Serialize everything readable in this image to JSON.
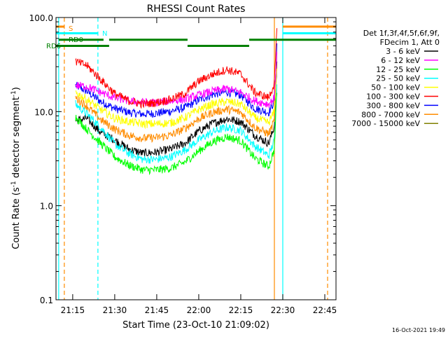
{
  "chart_data": {
    "type": "line",
    "title": "RHESSI Count Rates",
    "xlabel": "Start Time (23-Oct-10 21:09:02)",
    "ylabel": "Count Rate (s",
    "ylabel_sup": "-1",
    "ylabel_tail": " detector segment",
    "ylabel_sup2": "-1",
    "ylabel_end": ")",
    "y_scale": "log",
    "ylim": [
      0.1,
      100
    ],
    "xlim": [
      "21:09:02",
      "22:49:00"
    ],
    "x_ticks": [
      "21:15",
      "21:30",
      "21:45",
      "22:00",
      "22:15",
      "22:30",
      "22:45"
    ],
    "y_ticks": [
      "0.1",
      "1.0",
      "10.0",
      "100.0"
    ],
    "grid": false,
    "legend_position": "right",
    "legend_header": [
      "Det 1f,3f,4f,5f,6f,9f,",
      "FDecim 1, Att 0"
    ],
    "timestamp": "16-Oct-2021 19:49",
    "series": [
      {
        "name": "3 - 6 keV",
        "color": "#000000",
        "values": [
          [
            "21:16:00",
            8.0
          ],
          [
            "21:20:00",
            8.5
          ],
          [
            "21:25:00",
            6.0
          ],
          [
            "21:30:00",
            5.0
          ],
          [
            "21:35:00",
            4.0
          ],
          [
            "21:40:00",
            3.6
          ],
          [
            "21:45:00",
            3.7
          ],
          [
            "21:50:00",
            4.0
          ],
          [
            "21:55:00",
            4.6
          ],
          [
            "22:00:00",
            6.2
          ],
          [
            "22:05:00",
            7.5
          ],
          [
            "22:10:00",
            8.4
          ],
          [
            "22:15:00",
            7.8
          ],
          [
            "22:20:00",
            5.6
          ],
          [
            "22:25:00",
            4.6
          ],
          [
            "22:27:00",
            7.0
          ],
          [
            "22:28:00",
            40.0
          ]
        ]
      },
      {
        "name": "6 - 12 keV",
        "color": "#ff00ff",
        "values": [
          [
            "21:16:00",
            19.0
          ],
          [
            "21:20:00",
            18.5
          ],
          [
            "21:25:00",
            16.0
          ],
          [
            "21:30:00",
            14.0
          ],
          [
            "21:35:00",
            13.0
          ],
          [
            "21:40:00",
            12.5
          ],
          [
            "21:45:00",
            12.5
          ],
          [
            "21:50:00",
            13.0
          ],
          [
            "21:55:00",
            13.5
          ],
          [
            "22:00:00",
            15.0
          ],
          [
            "22:05:00",
            16.5
          ],
          [
            "22:10:00",
            17.5
          ],
          [
            "22:15:00",
            16.0
          ],
          [
            "22:20:00",
            13.0
          ],
          [
            "22:25:00",
            12.0
          ],
          [
            "22:27:00",
            14.0
          ],
          [
            "22:28:00",
            50.0
          ]
        ]
      },
      {
        "name": "12 - 25 keV",
        "color": "#00ff00",
        "values": [
          [
            "21:16:00",
            8.8
          ],
          [
            "21:20:00",
            6.5
          ],
          [
            "21:25:00",
            4.6
          ],
          [
            "21:30:00",
            3.3
          ],
          [
            "21:35:00",
            2.7
          ],
          [
            "21:40:00",
            2.4
          ],
          [
            "21:45:00",
            2.4
          ],
          [
            "21:50:00",
            2.5
          ],
          [
            "21:55:00",
            2.9
          ],
          [
            "22:00:00",
            3.8
          ],
          [
            "22:05:00",
            4.8
          ],
          [
            "22:10:00",
            5.4
          ],
          [
            "22:15:00",
            4.9
          ],
          [
            "22:20:00",
            3.2
          ],
          [
            "22:25:00",
            2.6
          ],
          [
            "22:27:00",
            4.0
          ],
          [
            "22:28:00",
            20.0
          ]
        ]
      },
      {
        "name": "25 - 50 keV",
        "color": "#00ffff",
        "values": [
          [
            "21:16:00",
            12.0
          ],
          [
            "21:20:00",
            9.5
          ],
          [
            "21:25:00",
            6.8
          ],
          [
            "21:30:00",
            4.5
          ],
          [
            "21:35:00",
            3.6
          ],
          [
            "21:40:00",
            3.1
          ],
          [
            "21:45:00",
            3.1
          ],
          [
            "21:50:00",
            3.3
          ],
          [
            "21:55:00",
            3.9
          ],
          [
            "22:00:00",
            5.0
          ],
          [
            "22:05:00",
            6.1
          ],
          [
            "22:10:00",
            6.8
          ],
          [
            "22:15:00",
            6.3
          ],
          [
            "22:20:00",
            4.3
          ],
          [
            "22:25:00",
            3.4
          ],
          [
            "22:27:00",
            5.0
          ],
          [
            "22:28:00",
            25.0
          ]
        ]
      },
      {
        "name": "50 - 100 keV",
        "color": "#ffff00",
        "values": [
          [
            "21:16:00",
            16.0
          ],
          [
            "21:20:00",
            13.5
          ],
          [
            "21:25:00",
            10.5
          ],
          [
            "21:30:00",
            8.5
          ],
          [
            "21:35:00",
            7.8
          ],
          [
            "21:40:00",
            7.4
          ],
          [
            "21:45:00",
            7.4
          ],
          [
            "21:50:00",
            7.6
          ],
          [
            "21:55:00",
            8.6
          ],
          [
            "22:00:00",
            10.5
          ],
          [
            "22:05:00",
            12.0
          ],
          [
            "22:10:00",
            12.8
          ],
          [
            "22:15:00",
            12.0
          ],
          [
            "22:20:00",
            8.6
          ],
          [
            "22:25:00",
            7.6
          ],
          [
            "22:27:00",
            10.0
          ],
          [
            "22:28:00",
            35.0
          ]
        ]
      },
      {
        "name": "100 - 300 keV",
        "color": "#ff0000",
        "values": [
          [
            "21:16:00",
            34.0
          ],
          [
            "21:20:00",
            31.0
          ],
          [
            "21:25:00",
            22.0
          ],
          [
            "21:30:00",
            15.5
          ],
          [
            "21:35:00",
            13.0
          ],
          [
            "21:40:00",
            12.0
          ],
          [
            "21:45:00",
            12.5
          ],
          [
            "21:50:00",
            13.5
          ],
          [
            "21:55:00",
            15.5
          ],
          [
            "22:00:00",
            21.0
          ],
          [
            "22:05:00",
            25.0
          ],
          [
            "22:10:00",
            28.0
          ],
          [
            "22:15:00",
            25.0
          ],
          [
            "22:20:00",
            16.0
          ],
          [
            "22:25:00",
            14.0
          ],
          [
            "22:27:00",
            20.0
          ],
          [
            "22:28:00",
            90.0
          ]
        ]
      },
      {
        "name": "300 - 800 keV",
        "color": "#0000ff",
        "values": [
          [
            "21:16:00",
            19.0
          ],
          [
            "21:20:00",
            16.5
          ],
          [
            "21:25:00",
            12.8
          ],
          [
            "21:30:00",
            10.8
          ],
          [
            "21:35:00",
            9.8
          ],
          [
            "21:40:00",
            9.4
          ],
          [
            "21:45:00",
            9.6
          ],
          [
            "21:50:00",
            10.1
          ],
          [
            "21:55:00",
            11.0
          ],
          [
            "22:00:00",
            13.3
          ],
          [
            "22:05:00",
            15.2
          ],
          [
            "22:10:00",
            16.2
          ],
          [
            "22:15:00",
            15.0
          ],
          [
            "22:20:00",
            10.8
          ],
          [
            "22:25:00",
            9.8
          ],
          [
            "22:27:00",
            13.0
          ],
          [
            "22:28:00",
            60.0
          ]
        ]
      },
      {
        "name": "800 - 7000 keV",
        "color": "#ff8c00",
        "values": [
          [
            "21:16:00",
            14.0
          ],
          [
            "21:20:00",
            11.5
          ],
          [
            "21:25:00",
            8.2
          ],
          [
            "21:30:00",
            6.5
          ],
          [
            "21:35:00",
            5.6
          ],
          [
            "21:40:00",
            5.2
          ],
          [
            "21:45:00",
            5.3
          ],
          [
            "21:50:00",
            5.6
          ],
          [
            "21:55:00",
            6.6
          ],
          [
            "22:00:00",
            8.4
          ],
          [
            "22:05:00",
            9.8
          ],
          [
            "22:10:00",
            10.6
          ],
          [
            "22:15:00",
            9.8
          ],
          [
            "22:20:00",
            6.8
          ],
          [
            "22:25:00",
            5.8
          ],
          [
            "22:27:00",
            8.0
          ],
          [
            "22:28:00",
            45.0
          ]
        ]
      },
      {
        "name": "7000 - 15000 keV",
        "color": "#808000",
        "values": []
      }
    ],
    "annotations": [
      {
        "text": "S",
        "color": "#ff8c00",
        "type": "step",
        "y": 80,
        "segments": [
          [
            "21:09:02",
            "21:12:00"
          ],
          [
            "22:30:00",
            "22:49:00"
          ]
        ]
      },
      {
        "text": "N",
        "color": "#00ffff",
        "type": "step",
        "y": 68,
        "segments": [
          [
            "21:09:02",
            "21:24:00"
          ],
          [
            "22:30:00",
            "22:49:00"
          ]
        ]
      },
      {
        "text": "RD0",
        "color": "#008000",
        "type": "step",
        "y": 58,
        "segments": [
          [
            "21:10:00",
            "21:26:00"
          ],
          [
            "21:28:00",
            "21:56:00"
          ],
          [
            "22:18:00",
            "22:49:00"
          ]
        ]
      },
      {
        "text": "RD6",
        "color": "#008000",
        "type": "step",
        "y": 50,
        "segments": [
          [
            "21:09:02",
            "21:28:00"
          ],
          [
            "21:56:00",
            "22:18:00"
          ]
        ]
      }
    ],
    "vlines": [
      {
        "time": "21:10:00",
        "color": "#00ffff",
        "style": "solid"
      },
      {
        "time": "21:12:00",
        "color": "#ff8c00",
        "style": "dashed"
      },
      {
        "time": "21:24:00",
        "color": "#00ffff",
        "style": "dashed"
      },
      {
        "time": "22:27:00",
        "color": "#ff8c00",
        "style": "solid"
      },
      {
        "time": "22:30:00",
        "color": "#00ffff",
        "style": "solid"
      },
      {
        "time": "22:46:00",
        "color": "#ff8c00",
        "style": "dashed"
      }
    ]
  }
}
